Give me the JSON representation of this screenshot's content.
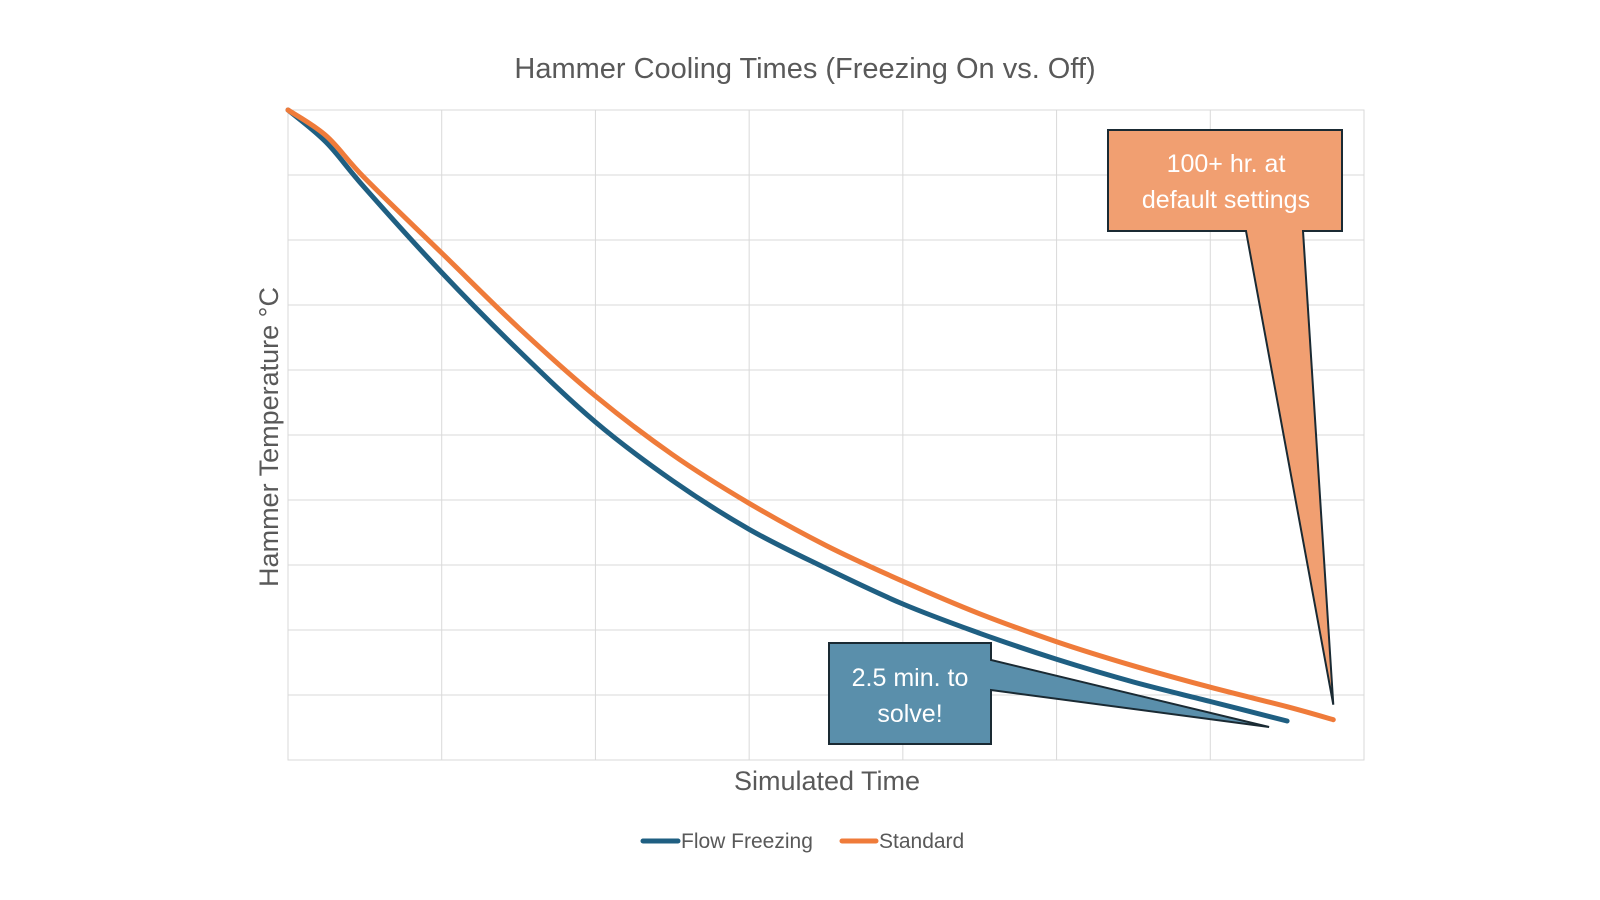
{
  "chart_data": {
    "type": "line",
    "title": "Hammer Cooling Times (Freezing On vs. Off)",
    "xlabel": "Simulated Time",
    "ylabel": "Hammer Temperature  °C",
    "xlim": [
      0,
      7
    ],
    "ylim": [
      0,
      10
    ],
    "grid": true,
    "x_gridlines": 7,
    "y_gridlines": 10,
    "legend_position": "bottom",
    "series": [
      {
        "name": "Flow Freezing",
        "color": "#1f5f82",
        "x": [
          0,
          0.25,
          0.5,
          1,
          1.5,
          2,
          2.5,
          3,
          3.5,
          4,
          4.5,
          5,
          5.5,
          6,
          6.5
        ],
        "y": [
          10,
          9.5,
          8.8,
          7.5,
          6.3,
          5.2,
          4.3,
          3.55,
          2.95,
          2.4,
          1.95,
          1.55,
          1.2,
          0.9,
          0.6
        ]
      },
      {
        "name": "Standard",
        "color": "#ef7b3a",
        "x": [
          0,
          0.25,
          0.5,
          1,
          1.5,
          2,
          2.5,
          3,
          3.5,
          4,
          4.5,
          5,
          5.5,
          6,
          6.5,
          6.8
        ],
        "y": [
          10,
          9.6,
          8.95,
          7.8,
          6.65,
          5.6,
          4.7,
          3.95,
          3.3,
          2.75,
          2.25,
          1.82,
          1.45,
          1.12,
          0.82,
          0.62
        ]
      }
    ],
    "annotations": [
      {
        "id": "standard",
        "text": [
          "100+ hr. at",
          "default settings"
        ],
        "fill": "#f19f71",
        "points_to_series": "Standard"
      },
      {
        "id": "freezing",
        "text": [
          "2.5 min. to",
          "solve!"
        ],
        "fill": "#5a8fab",
        "points_to_series": "Flow Freezing"
      }
    ]
  }
}
